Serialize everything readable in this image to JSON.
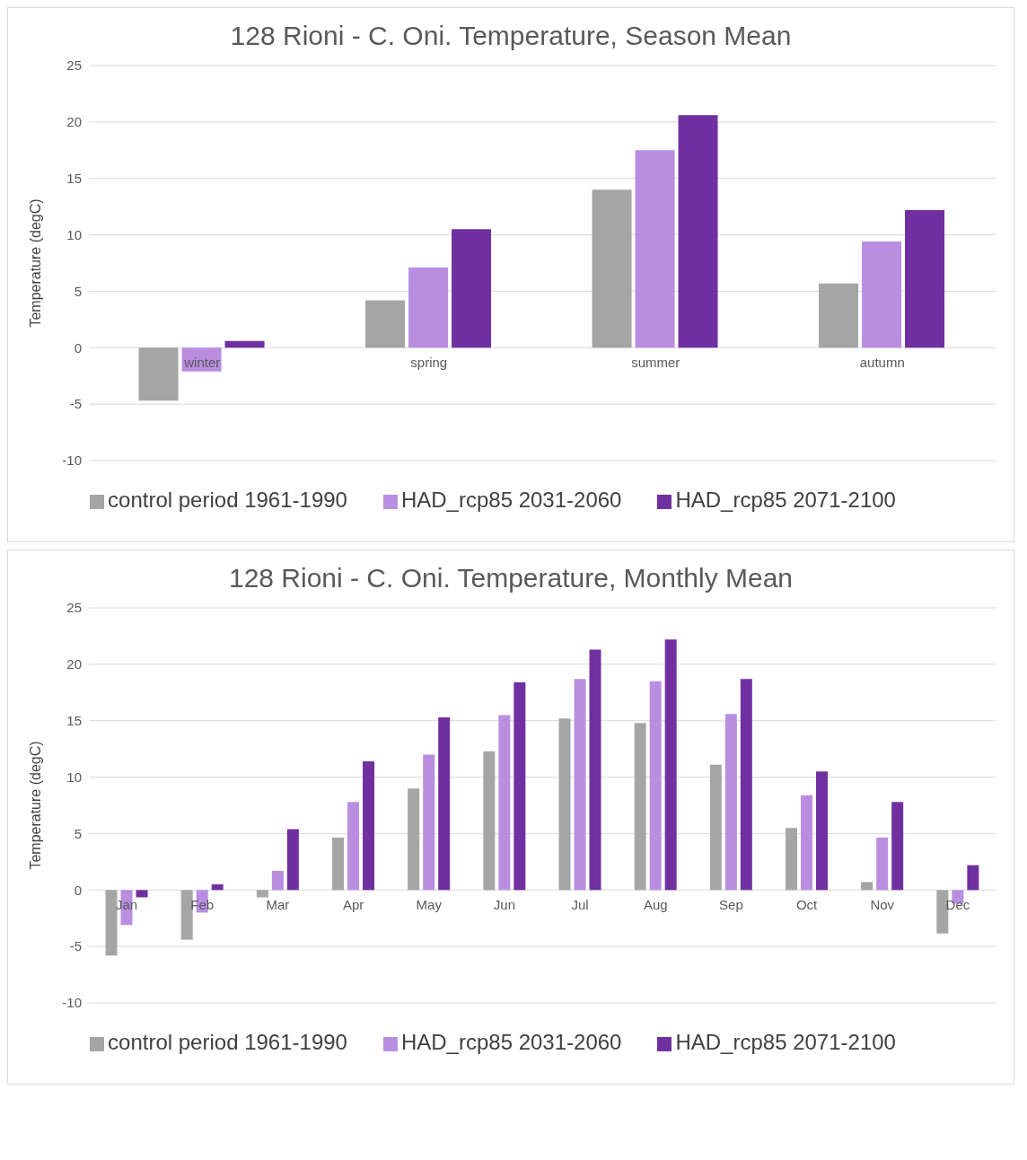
{
  "chart_data": [
    {
      "type": "bar",
      "title": "128 Rioni - C. Oni. Temperature, Season Mean",
      "ylabel": "Temperature (degC)",
      "categories": [
        "winter",
        "spring",
        "summer",
        "autumn"
      ],
      "series": [
        {
          "name": "control period 1961-1990",
          "color": "#a5a5a5",
          "values": [
            -4.7,
            4.2,
            14.0,
            5.7
          ]
        },
        {
          "name": "HAD_rcp85 2031-2060",
          "color": "#b98ee0",
          "values": [
            -2.1,
            7.1,
            17.5,
            9.4
          ]
        },
        {
          "name": "HAD_rcp85 2071-2100",
          "color": "#7030a0",
          "values": [
            0.6,
            10.5,
            20.6,
            12.2
          ]
        }
      ],
      "ylim": [
        -10,
        25
      ],
      "yticks": [
        -10,
        -5,
        0,
        5,
        10,
        15,
        20,
        25
      ],
      "grid": "y",
      "legend": "bottom"
    },
    {
      "type": "bar",
      "title": "128 Rioni - C. Oni. Temperature,  Monthly Mean",
      "ylabel": "Temperature (degC)",
      "categories": [
        "Jan",
        "Feb",
        "Mar",
        "Apr",
        "May",
        "Jun",
        "Jul",
        "Aug",
        "Sep",
        "Oct",
        "Nov",
        "Dec"
      ],
      "series": [
        {
          "name": "control period 1961-1990",
          "color": "#a5a5a5",
          "values": [
            -5.8,
            -4.4,
            -0.65,
            4.65,
            9.0,
            12.3,
            15.2,
            14.8,
            11.1,
            5.5,
            0.7,
            -3.85
          ]
        },
        {
          "name": "HAD_rcp85 2031-2060",
          "color": "#b98ee0",
          "values": [
            -3.1,
            -2.0,
            1.7,
            7.8,
            12.0,
            15.5,
            18.7,
            18.5,
            15.6,
            8.4,
            4.65,
            -1.2
          ]
        },
        {
          "name": "HAD_rcp85 2071-2100",
          "color": "#7030a0",
          "values": [
            -0.65,
            0.5,
            5.4,
            11.4,
            15.3,
            18.4,
            21.3,
            22.2,
            18.7,
            10.5,
            7.8,
            2.2
          ]
        }
      ],
      "ylim": [
        -10,
        25
      ],
      "yticks": [
        -10,
        -5,
        0,
        5,
        10,
        15,
        20,
        25
      ],
      "grid": "y",
      "legend": "bottom"
    }
  ]
}
